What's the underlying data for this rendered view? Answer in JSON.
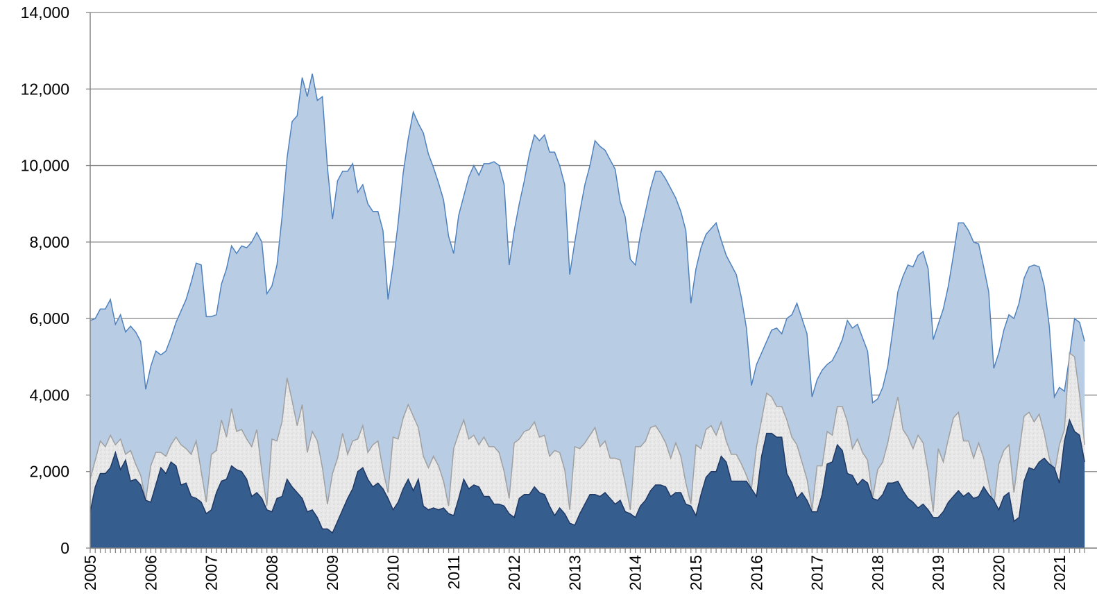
{
  "chart_data": {
    "type": "area",
    "categories": [
      "2005",
      null,
      null,
      null,
      null,
      null,
      null,
      null,
      null,
      null,
      null,
      null,
      "2006",
      null,
      null,
      null,
      null,
      null,
      null,
      null,
      null,
      null,
      null,
      null,
      "2007",
      null,
      null,
      null,
      null,
      null,
      null,
      null,
      null,
      null,
      null,
      null,
      "2008",
      null,
      null,
      null,
      null,
      null,
      null,
      null,
      null,
      null,
      null,
      null,
      "2009",
      null,
      null,
      null,
      null,
      null,
      null,
      null,
      null,
      null,
      null,
      null,
      "2010",
      null,
      null,
      null,
      null,
      null,
      null,
      null,
      null,
      null,
      null,
      null,
      "2011",
      null,
      null,
      null,
      null,
      null,
      null,
      null,
      null,
      null,
      null,
      null,
      "2012",
      null,
      null,
      null,
      null,
      null,
      null,
      null,
      null,
      null,
      null,
      null,
      "2013",
      null,
      null,
      null,
      null,
      null,
      null,
      null,
      null,
      null,
      null,
      null,
      "2014",
      null,
      null,
      null,
      null,
      null,
      null,
      null,
      null,
      null,
      null,
      null,
      "2015",
      null,
      null,
      null,
      null,
      null,
      null,
      null,
      null,
      null,
      null,
      null,
      "2016",
      null,
      null,
      null,
      null,
      null,
      null,
      null,
      null,
      null,
      null,
      null,
      "2017",
      null,
      null,
      null,
      null,
      null,
      null,
      null,
      null,
      null,
      null,
      null,
      "2018",
      null,
      null,
      null,
      null,
      null,
      null,
      null,
      null,
      null,
      null,
      null,
      "2019",
      null,
      null,
      null,
      null,
      null,
      null,
      null,
      null,
      null,
      null,
      null,
      "2020",
      null,
      null,
      null,
      null,
      null,
      null,
      null,
      null,
      null,
      null,
      null,
      "2021",
      null,
      null,
      null,
      null,
      null
    ],
    "series": [
      {
        "color": "#b8cce4",
        "values": [
          5950,
          6000,
          6250,
          6250,
          6500,
          5850,
          6100,
          5650,
          5800,
          5650,
          5400,
          4150,
          4750,
          5150,
          5050,
          5150,
          5500,
          5900,
          6200,
          6500,
          6950,
          7450,
          7400,
          6050,
          6050,
          6100,
          6900,
          7300,
          7900,
          7700,
          7900,
          7850,
          8000,
          8250,
          8000,
          6650,
          6850,
          7400,
          8650,
          10200,
          11150,
          11300,
          12300,
          11800,
          12400,
          11700,
          11800,
          9950,
          8600,
          9600,
          9850,
          9850,
          10050,
          9300,
          9500,
          9000,
          8800,
          8800,
          8300,
          6500,
          7400,
          8500,
          9800,
          10700,
          11400,
          11100,
          10850,
          10300,
          9950,
          9550,
          9100,
          8150,
          7700,
          8700,
          9200,
          9700,
          10000,
          9750,
          10050,
          10050,
          10100,
          10000,
          9500,
          7400,
          8300,
          9000,
          9600,
          10300,
          10800,
          10650,
          10800,
          10350,
          10350,
          10000,
          9500,
          7150,
          8000,
          8800,
          9500,
          10000,
          10650,
          10500,
          10400,
          10150,
          9900,
          9050,
          8650,
          7550,
          7400,
          8200,
          8800,
          9400,
          9850,
          9850,
          9650,
          9400,
          9150,
          8800,
          8300,
          6400,
          7300,
          7850,
          8200,
          8350,
          8500,
          8050,
          7650,
          7400,
          7150,
          6550,
          5750,
          4250,
          4800,
          5100,
          5400,
          5700,
          5750,
          5600,
          6000,
          6100,
          6400,
          6000,
          5600,
          3950,
          4400,
          4650,
          4800,
          4900,
          5150,
          5450,
          5950,
          5750,
          5850,
          5500,
          5150,
          3800,
          3900,
          4200,
          4750,
          5700,
          6700,
          7100,
          7400,
          7350,
          7650,
          7750,
          7300,
          5450,
          5850,
          6250,
          6850,
          7650,
          8500,
          8500,
          8300,
          8000,
          7950,
          7350,
          6700,
          4700,
          5100,
          5700,
          6100,
          6000,
          6400,
          7050,
          7350,
          7400,
          7350,
          6850,
          5800,
          3950,
          4200,
          4100,
          5000,
          6000,
          5900,
          5400
        ]
      },
      {
        "color": "#e4e4e4",
        "values": [
          1800,
          2300,
          2800,
          2650,
          2950,
          2700,
          2850,
          2450,
          2550,
          2200,
          1900,
          1250,
          2150,
          2500,
          2500,
          2400,
          2700,
          2900,
          2700,
          2600,
          2450,
          2800,
          2000,
          1200,
          2450,
          2550,
          3350,
          2900,
          3650,
          3050,
          3100,
          2850,
          2650,
          3100,
          2000,
          1100,
          2850,
          2800,
          3300,
          4450,
          3850,
          3200,
          3750,
          2500,
          3050,
          2800,
          2100,
          1150,
          1950,
          2350,
          3000,
          2450,
          2800,
          2850,
          3200,
          2500,
          2700,
          2800,
          2050,
          1450,
          2900,
          2850,
          3400,
          3750,
          3450,
          3150,
          2400,
          2100,
          2400,
          2150,
          1750,
          1100,
          2600,
          3000,
          3350,
          2850,
          2950,
          2700,
          2900,
          2650,
          2650,
          2500,
          2000,
          1300,
          2750,
          2850,
          3050,
          3100,
          3300,
          2900,
          2950,
          2400,
          2550,
          2500,
          2050,
          1000,
          2650,
          2600,
          2750,
          2950,
          3150,
          2650,
          2800,
          2350,
          2350,
          2300,
          1700,
          1000,
          2650,
          2650,
          2800,
          3150,
          3200,
          3000,
          2750,
          2350,
          2750,
          2400,
          1700,
          1150,
          2700,
          2600,
          3100,
          3200,
          2950,
          3300,
          2800,
          2450,
          2450,
          2200,
          1900,
          1550,
          2650,
          3350,
          4050,
          3950,
          3700,
          3700,
          3350,
          2900,
          2700,
          2250,
          1800,
          1000,
          2150,
          2150,
          3050,
          2950,
          3700,
          3700,
          3300,
          2600,
          2850,
          2500,
          2300,
          1300,
          2050,
          2250,
          2750,
          3400,
          3950,
          3100,
          2900,
          2600,
          2950,
          2750,
          2000,
          950,
          2600,
          2250,
          2850,
          3400,
          3550,
          2800,
          2800,
          2350,
          2750,
          2350,
          1700,
          1100,
          2200,
          2550,
          2700,
          1450,
          2500,
          3450,
          3550,
          3300,
          3500,
          3000,
          2350,
          1950,
          2700,
          3100,
          5100,
          5000,
          4000,
          2700
        ]
      },
      {
        "color": "#355e8e",
        "values": [
          950,
          1600,
          1950,
          1950,
          2100,
          2500,
          2050,
          2300,
          1750,
          1800,
          1650,
          1250,
          1200,
          1650,
          2100,
          1950,
          2250,
          2150,
          1650,
          1700,
          1350,
          1300,
          1200,
          900,
          1000,
          1450,
          1750,
          1800,
          2150,
          2050,
          2000,
          1800,
          1350,
          1450,
          1300,
          1000,
          950,
          1300,
          1350,
          1800,
          1600,
          1450,
          1300,
          950,
          1000,
          800,
          500,
          500,
          400,
          700,
          1000,
          1300,
          1550,
          2000,
          2100,
          1800,
          1600,
          1700,
          1550,
          1300,
          1000,
          1200,
          1550,
          1800,
          1500,
          1800,
          1100,
          1000,
          1050,
          1000,
          1050,
          900,
          850,
          1300,
          1800,
          1550,
          1650,
          1600,
          1350,
          1350,
          1150,
          1150,
          1100,
          900,
          800,
          1300,
          1400,
          1400,
          1600,
          1450,
          1400,
          1100,
          850,
          1050,
          900,
          650,
          600,
          900,
          1150,
          1400,
          1400,
          1350,
          1450,
          1300,
          1150,
          1250,
          950,
          900,
          800,
          1100,
          1250,
          1500,
          1650,
          1650,
          1600,
          1350,
          1450,
          1450,
          1150,
          1100,
          850,
          1400,
          1850,
          2000,
          2000,
          2400,
          2250,
          1750,
          1750,
          1750,
          1750,
          1550,
          1350,
          2400,
          3000,
          3000,
          2900,
          2900,
          1950,
          1700,
          1300,
          1450,
          1250,
          950,
          950,
          1400,
          2200,
          2250,
          2700,
          2550,
          1950,
          1900,
          1650,
          1800,
          1700,
          1300,
          1250,
          1400,
          1700,
          1700,
          1750,
          1500,
          1300,
          1200,
          1050,
          1150,
          1000,
          800,
          800,
          950,
          1200,
          1350,
          1500,
          1350,
          1450,
          1300,
          1350,
          1600,
          1400,
          1250,
          1000,
          1350,
          1450,
          700,
          800,
          1750,
          2100,
          2050,
          2250,
          2350,
          2200,
          2100,
          1700,
          2800,
          3350,
          3050,
          2950,
          2250
        ]
      }
    ],
    "ylim": [
      0,
      14000
    ],
    "yticks": [
      0,
      {
        "value": 2000,
        "label": "2,000"
      },
      {
        "value": 4000,
        "label": "4,000"
      },
      {
        "value": 6000,
        "label": "6,000"
      },
      {
        "value": 8000,
        "label": "8,000"
      },
      {
        "value": 10000,
        "label": "10,000"
      },
      {
        "value": 12000,
        "label": "12,000"
      },
      {
        "value": 14000,
        "label": "14,000"
      }
    ],
    "grid": true
  }
}
